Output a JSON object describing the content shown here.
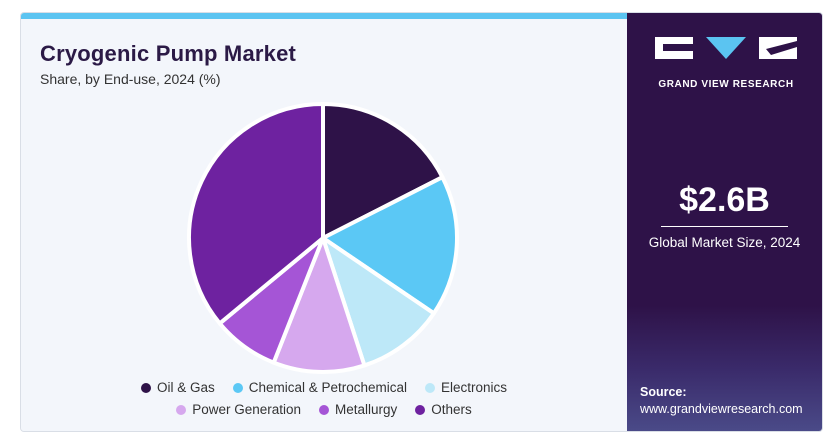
{
  "chart_data": {
    "type": "pie",
    "title": "Cryogenic Pump Market",
    "subtitle": "Share, by End-use, 2024 (%)",
    "slices": [
      {
        "label": "Oil & Gas",
        "value": 17.5,
        "color": "#2e1248"
      },
      {
        "label": "Chemical & Petrochemical",
        "value": 17.0,
        "color": "#5bc8f5"
      },
      {
        "label": "Electronics",
        "value": 10.5,
        "color": "#bde8f8"
      },
      {
        "label": "Power Generation",
        "value": 11.0,
        "color": "#d6a8ee"
      },
      {
        "label": "Metallurgy",
        "value": 8.0,
        "color": "#a555d6"
      },
      {
        "label": "Others",
        "value": 36.0,
        "color": "#6e22a0"
      }
    ],
    "start_angle_deg": 0,
    "direction": "clockwise",
    "legend_position": "bottom"
  },
  "legend": {
    "rows": [
      [
        {
          "label": "Oil & Gas",
          "color": "#2e1248"
        },
        {
          "label": "Chemical & Petrochemical",
          "color": "#5bc8f5"
        },
        {
          "label": "Electronics",
          "color": "#bde8f8"
        }
      ],
      [
        {
          "label": "Power Generation",
          "color": "#d6a8ee"
        },
        {
          "label": "Metallurgy",
          "color": "#a555d6"
        },
        {
          "label": "Others",
          "color": "#6e22a0"
        }
      ]
    ]
  },
  "sidebar": {
    "brand": "GRAND VIEW RESEARCH",
    "market_size": "$2.6B",
    "market_size_label": "Global Market Size, 2024",
    "source_label": "Source:",
    "source_url": "www.grandviewresearch.com"
  },
  "colors": {
    "sidebar_bg": "#2e1248",
    "accent": "#5bc4f1",
    "title": "#2b1a46"
  }
}
